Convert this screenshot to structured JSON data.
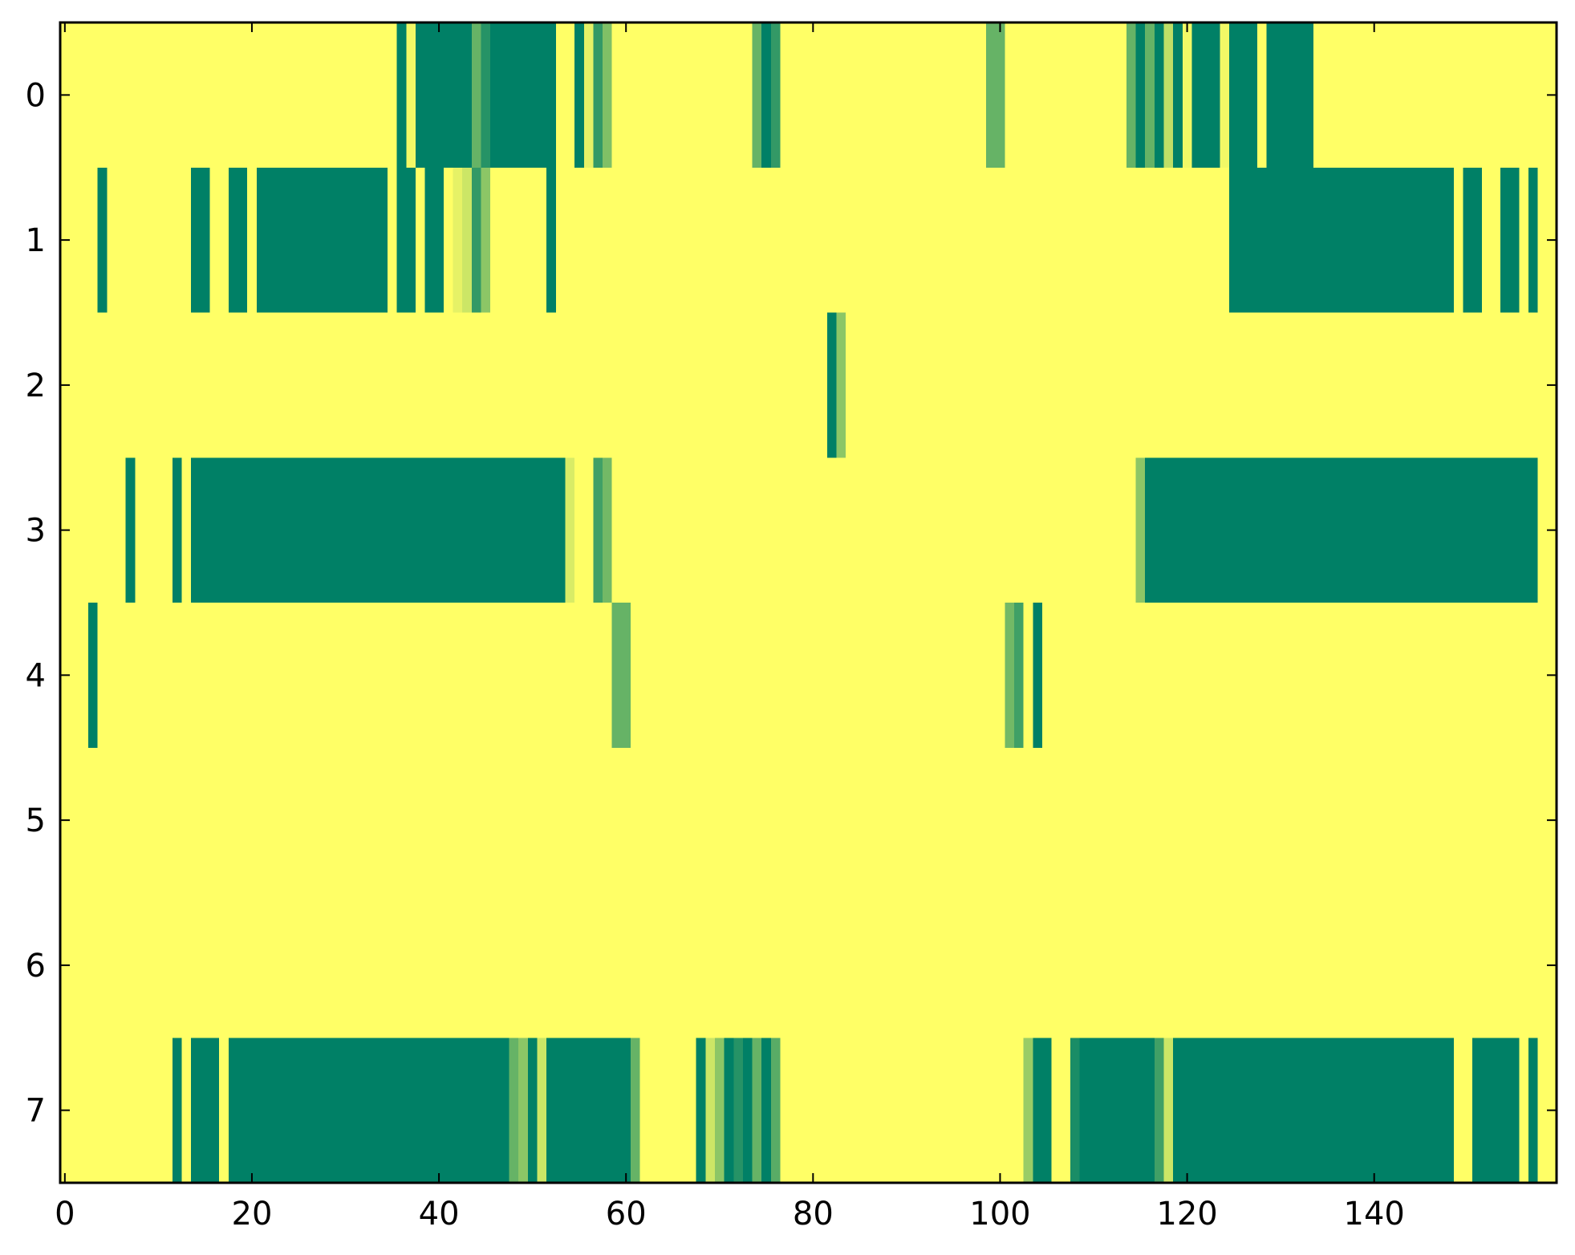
{
  "chart_data": {
    "type": "heatmap",
    "title": "",
    "xlabel": "",
    "ylabel": "",
    "x_range": [
      -0.5,
      159.5
    ],
    "y_range": [
      -0.5,
      7.5
    ],
    "y_inverted": true,
    "grid": false,
    "legend": "none",
    "x_ticks": [
      0,
      20,
      40,
      60,
      80,
      100,
      120,
      140
    ],
    "x_tick_labels": [
      "0",
      "20",
      "40",
      "60",
      "80",
      "100",
      "120",
      "140"
    ],
    "y_ticks": [
      0,
      1,
      2,
      3,
      4,
      5,
      6,
      7
    ],
    "y_tick_labels": [
      "0",
      "1",
      "2",
      "3",
      "4",
      "5",
      "6",
      "7"
    ],
    "value_range": [
      0,
      1
    ],
    "colormap": "summer_r",
    "colormap_stops": [
      {
        "value": 0,
        "color": "#ffff66"
      },
      {
        "value": 1,
        "color": "#008066"
      }
    ],
    "background_value": 0,
    "rows": [
      {
        "row": 0,
        "runs": [
          {
            "start": 36,
            "end": 36,
            "value": 1.0
          },
          {
            "start": 37,
            "end": 37,
            "value": 0.05
          },
          {
            "start": 38,
            "end": 43,
            "value": 1.0
          },
          {
            "start": 44,
            "end": 44,
            "value": 0.6
          },
          {
            "start": 45,
            "end": 45,
            "value": 0.85
          },
          {
            "start": 46,
            "end": 52,
            "value": 1.0
          },
          {
            "start": 55,
            "end": 55,
            "value": 1.0
          },
          {
            "start": 56,
            "end": 56,
            "value": 0.1
          },
          {
            "start": 57,
            "end": 57,
            "value": 0.8
          },
          {
            "start": 58,
            "end": 58,
            "value": 0.5
          },
          {
            "start": 74,
            "end": 74,
            "value": 0.6
          },
          {
            "start": 75,
            "end": 75,
            "value": 1.0
          },
          {
            "start": 76,
            "end": 76,
            "value": 0.8
          },
          {
            "start": 99,
            "end": 100,
            "value": 0.6
          },
          {
            "start": 114,
            "end": 114,
            "value": 0.6
          },
          {
            "start": 115,
            "end": 115,
            "value": 1.0
          },
          {
            "start": 116,
            "end": 116,
            "value": 0.6
          },
          {
            "start": 117,
            "end": 117,
            "value": 1.0
          },
          {
            "start": 118,
            "end": 118,
            "value": 0.25
          },
          {
            "start": 119,
            "end": 119,
            "value": 1.0
          },
          {
            "start": 120,
            "end": 120,
            "value": 0.05
          },
          {
            "start": 121,
            "end": 121,
            "value": 1.0
          },
          {
            "start": 122,
            "end": 123,
            "value": 1.0
          },
          {
            "start": 124,
            "end": 124,
            "value": 0.05
          },
          {
            "start": 125,
            "end": 127,
            "value": 1.0
          },
          {
            "start": 129,
            "end": 133,
            "value": 1.0
          }
        ]
      },
      {
        "row": 1,
        "runs": [
          {
            "start": 4,
            "end": 4,
            "value": 1.0
          },
          {
            "start": 14,
            "end": 15,
            "value": 1.0
          },
          {
            "start": 18,
            "end": 19,
            "value": 1.0
          },
          {
            "start": 21,
            "end": 34,
            "value": 1.0
          },
          {
            "start": 36,
            "end": 37,
            "value": 1.0
          },
          {
            "start": 39,
            "end": 40,
            "value": 1.0
          },
          {
            "start": 42,
            "end": 42,
            "value": 0.1
          },
          {
            "start": 43,
            "end": 43,
            "value": 0.2
          },
          {
            "start": 44,
            "end": 44,
            "value": 0.8
          },
          {
            "start": 45,
            "end": 45,
            "value": 0.45
          },
          {
            "start": 52,
            "end": 52,
            "value": 1.0
          },
          {
            "start": 125,
            "end": 141,
            "value": 1.0
          },
          {
            "start": 142,
            "end": 148,
            "value": 1.0
          },
          {
            "start": 150,
            "end": 151,
            "value": 1.0
          },
          {
            "start": 154,
            "end": 155,
            "value": 1.0
          },
          {
            "start": 157,
            "end": 157,
            "value": 1.0
          }
        ]
      },
      {
        "row": 2,
        "runs": [
          {
            "start": 82,
            "end": 82,
            "value": 1.0
          },
          {
            "start": 83,
            "end": 83,
            "value": 0.45
          }
        ]
      },
      {
        "row": 3,
        "runs": [
          {
            "start": 7,
            "end": 7,
            "value": 1.0
          },
          {
            "start": 12,
            "end": 12,
            "value": 1.0
          },
          {
            "start": 14,
            "end": 53,
            "value": 1.0
          },
          {
            "start": 54,
            "end": 54,
            "value": 0.15
          },
          {
            "start": 57,
            "end": 57,
            "value": 0.75
          },
          {
            "start": 58,
            "end": 58,
            "value": 0.55
          },
          {
            "start": 115,
            "end": 115,
            "value": 0.45
          },
          {
            "start": 116,
            "end": 157,
            "value": 1.0
          }
        ]
      },
      {
        "row": 4,
        "runs": [
          {
            "start": 3,
            "end": 3,
            "value": 1.0
          },
          {
            "start": 59,
            "end": 60,
            "value": 0.6
          },
          {
            "start": 101,
            "end": 101,
            "value": 0.55
          },
          {
            "start": 102,
            "end": 102,
            "value": 0.75
          },
          {
            "start": 104,
            "end": 104,
            "value": 1.0
          }
        ]
      },
      {
        "row": 5,
        "runs": []
      },
      {
        "row": 6,
        "runs": []
      },
      {
        "row": 7,
        "runs": [
          {
            "start": 12,
            "end": 12,
            "value": 1.0
          },
          {
            "start": 14,
            "end": 16,
            "value": 1.0
          },
          {
            "start": 18,
            "end": 47,
            "value": 1.0
          },
          {
            "start": 48,
            "end": 48,
            "value": 0.6
          },
          {
            "start": 49,
            "end": 49,
            "value": 0.45
          },
          {
            "start": 50,
            "end": 50,
            "value": 1.0
          },
          {
            "start": 51,
            "end": 51,
            "value": 0.2
          },
          {
            "start": 52,
            "end": 60,
            "value": 1.0
          },
          {
            "start": 61,
            "end": 61,
            "value": 0.6
          },
          {
            "start": 68,
            "end": 68,
            "value": 1.0
          },
          {
            "start": 69,
            "end": 69,
            "value": 0.2
          },
          {
            "start": 70,
            "end": 70,
            "value": 0.45
          },
          {
            "start": 71,
            "end": 71,
            "value": 1.0
          },
          {
            "start": 72,
            "end": 72,
            "value": 0.85
          },
          {
            "start": 73,
            "end": 73,
            "value": 1.0
          },
          {
            "start": 74,
            "end": 74,
            "value": 0.6
          },
          {
            "start": 75,
            "end": 75,
            "value": 1.0
          },
          {
            "start": 76,
            "end": 76,
            "value": 0.65
          },
          {
            "start": 103,
            "end": 103,
            "value": 0.4
          },
          {
            "start": 104,
            "end": 105,
            "value": 1.0
          },
          {
            "start": 108,
            "end": 108,
            "value": 0.9
          },
          {
            "start": 109,
            "end": 116,
            "value": 1.0
          },
          {
            "start": 117,
            "end": 117,
            "value": 0.75
          },
          {
            "start": 118,
            "end": 118,
            "value": 0.2
          },
          {
            "start": 119,
            "end": 148,
            "value": 1.0
          },
          {
            "start": 151,
            "end": 155,
            "value": 1.0
          },
          {
            "start": 157,
            "end": 157,
            "value": 1.0
          }
        ]
      }
    ]
  }
}
